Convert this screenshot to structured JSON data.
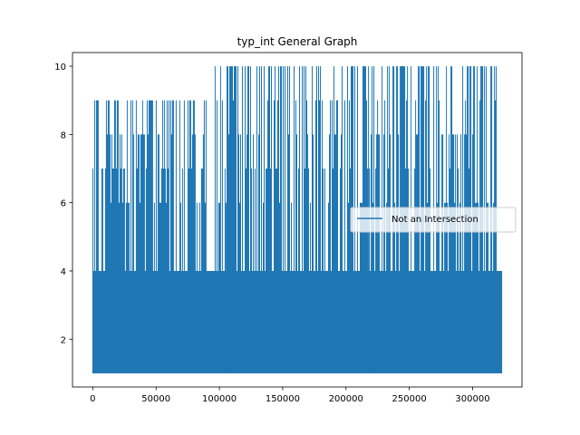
{
  "chart_data": {
    "type": "line",
    "title": "typ_int General Graph",
    "xlabel": "",
    "ylabel": "",
    "xlim": [
      -16000,
      339000
    ],
    "ylim": [
      0.6,
      10.4
    ],
    "x_ticks": [
      0,
      50000,
      100000,
      150000,
      200000,
      250000,
      300000
    ],
    "x_tick_labels": [
      "0",
      "50000",
      "100000",
      "150000",
      "200000",
      "250000",
      "300000"
    ],
    "y_ticks": [
      2,
      4,
      6,
      8,
      10
    ],
    "y_tick_labels": [
      "2",
      "4",
      "6",
      "8",
      "10"
    ],
    "grid": false,
    "legend_position": "center-right",
    "colors": {
      "series": "#1f77b4",
      "axes": "#000000",
      "background": "#ffffff"
    },
    "series": [
      {
        "name": "Not an Intersection",
        "x_start": 0,
        "x_end": 323000,
        "y_min": 1,
        "y_max": 10,
        "dense_band": [
          1,
          4
        ],
        "spike_segments": [
          {
            "x_from": 0,
            "x_to": 90000,
            "y_peak": 9
          },
          {
            "x_from": 93000,
            "x_to": 320000,
            "y_peak": 10
          }
        ],
        "frequent_levels": [
          1,
          2,
          3,
          4,
          6,
          7,
          8,
          9,
          10
        ]
      }
    ]
  }
}
